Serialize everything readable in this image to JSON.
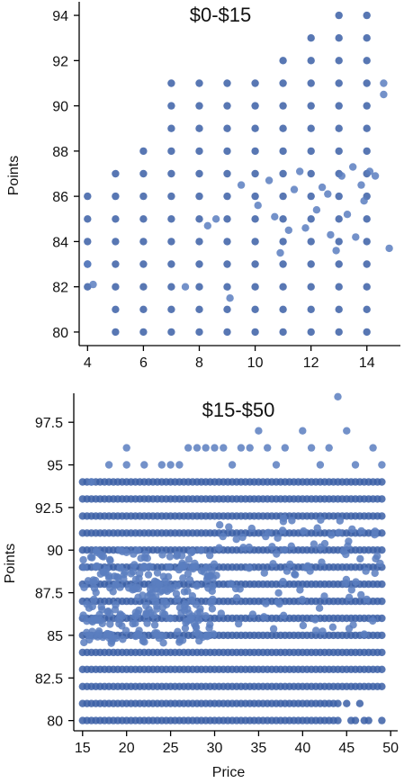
{
  "chart_data": [
    {
      "type": "scatter",
      "title": "$0-$15",
      "xlabel": "",
      "ylabel": "Points",
      "xlim": [
        3.7,
        15.2
      ],
      "ylim": [
        79.4,
        94.6
      ],
      "xticks": [
        4,
        6,
        8,
        10,
        12,
        14
      ],
      "yticks": [
        80,
        82,
        84,
        86,
        88,
        90,
        92,
        94
      ],
      "grid": false,
      "column_ranges": [
        {
          "x": 4,
          "ymin": 82,
          "ymax": 86
        },
        {
          "x": 5,
          "ymin": 80,
          "ymax": 87
        },
        {
          "x": 6,
          "ymin": 80,
          "ymax": 88
        },
        {
          "x": 7,
          "ymin": 80,
          "ymax": 91
        },
        {
          "x": 8,
          "ymin": 80,
          "ymax": 91
        },
        {
          "x": 9,
          "ymin": 80,
          "ymax": 91
        },
        {
          "x": 10,
          "ymin": 80,
          "ymax": 91
        },
        {
          "x": 11,
          "ymin": 80,
          "ymax": 92
        },
        {
          "x": 12,
          "ymin": 80,
          "ymax": 93
        },
        {
          "x": 13,
          "ymin": 80,
          "ymax": 94
        },
        {
          "x": 14,
          "ymin": 80,
          "ymax": 94
        }
      ],
      "scattered_points": [
        [
          4,
          83
        ],
        [
          4.2,
          82.1
        ],
        [
          7.5,
          82
        ],
        [
          8.3,
          84.7
        ],
        [
          8.6,
          85
        ],
        [
          9.1,
          81.5
        ],
        [
          9.5,
          86.5
        ],
        [
          10.1,
          85.6
        ],
        [
          10.5,
          86.7
        ],
        [
          10.7,
          85.1
        ],
        [
          10.9,
          83.5
        ],
        [
          11.2,
          84.5
        ],
        [
          11.4,
          86.3
        ],
        [
          11.6,
          87.1
        ],
        [
          11.8,
          84.6
        ],
        [
          12.2,
          85.4
        ],
        [
          12.4,
          86.4
        ],
        [
          12.6,
          86.1
        ],
        [
          12.7,
          84.3
        ],
        [
          12.9,
          83.6
        ],
        [
          13.1,
          86.9
        ],
        [
          13.3,
          85.2
        ],
        [
          13.5,
          87.3
        ],
        [
          13.6,
          84.2
        ],
        [
          13.8,
          86.5
        ],
        [
          13.9,
          85.8
        ],
        [
          14.1,
          87.1
        ],
        [
          14.3,
          86.9
        ],
        [
          14.6,
          91
        ],
        [
          14.6,
          90.5
        ],
        [
          14.8,
          83.7
        ]
      ]
    },
    {
      "type": "scatter",
      "title": "$15-$50",
      "xlabel": "Price",
      "ylabel": "Points",
      "xlim": [
        14,
        50.8
      ],
      "ylim": [
        79.4,
        99.2
      ],
      "xticks": [
        15,
        20,
        25,
        30,
        35,
        40,
        45,
        50
      ],
      "xtick_labels": [
        "15",
        "20",
        "25",
        "30",
        "35",
        "40",
        "45",
        "50"
      ],
      "yticks": [
        80,
        82.5,
        85,
        87.5,
        90,
        92.5,
        95,
        97.5
      ],
      "ytick_labels": [
        "80",
        "82.5",
        "85",
        "87.5",
        "90",
        "92.5",
        "95",
        "97.5"
      ],
      "grid": false,
      "x_range": [
        15,
        49
      ],
      "y_levels": [
        80,
        81,
        82,
        83,
        84,
        85,
        86,
        87,
        88,
        89,
        90,
        91,
        92,
        93,
        94
      ],
      "high_points": [
        [
          20,
          96
        ],
        [
          20,
          95
        ],
        [
          22,
          95
        ],
        [
          24,
          95
        ],
        [
          26,
          95
        ],
        [
          27,
          96
        ],
        [
          28,
          96
        ],
        [
          29,
          96
        ],
        [
          30,
          96
        ],
        [
          31,
          96
        ],
        [
          33,
          96
        ],
        [
          34,
          96
        ],
        [
          35,
          97
        ],
        [
          36,
          96
        ],
        [
          38,
          96
        ],
        [
          40,
          97
        ],
        [
          41,
          96
        ],
        [
          43,
          96
        ],
        [
          44,
          99
        ],
        [
          45,
          97
        ],
        [
          48,
          96
        ],
        [
          16,
          94
        ],
        [
          18,
          95
        ],
        [
          25,
          95
        ],
        [
          32,
          95
        ],
        [
          37,
          95
        ],
        [
          42,
          95
        ],
        [
          46,
          95
        ],
        [
          49,
          95
        ]
      ],
      "dense_region": {
        "x": [
          15,
          30
        ],
        "y": [
          84.5,
          90
        ]
      }
    }
  ]
}
